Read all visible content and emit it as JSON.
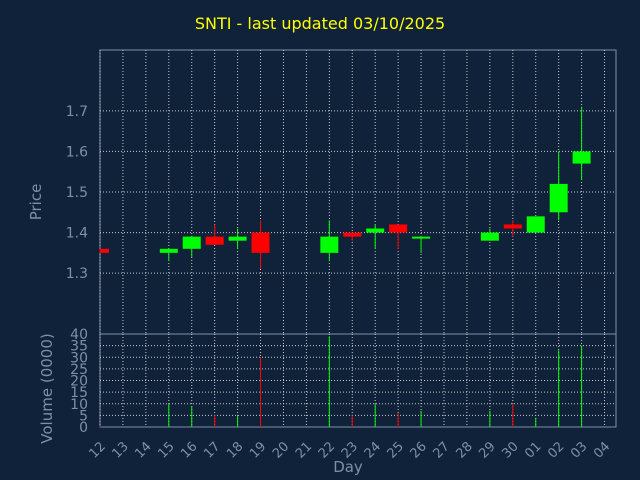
{
  "chart_data": {
    "type": "candlestick",
    "title": "SNTI - last updated 03/10/2025",
    "xlabel": "Day",
    "x_ticks": [
      "12",
      "13",
      "14",
      "15",
      "16",
      "17",
      "18",
      "19",
      "20",
      "21",
      "22",
      "23",
      "24",
      "25",
      "26",
      "27",
      "28",
      "29",
      "30",
      "01",
      "02",
      "03",
      "04"
    ],
    "price_panel": {
      "ylabel": "Price",
      "ylim": [
        1.15,
        1.85
      ],
      "yticks": [
        1.3,
        1.4,
        1.5,
        1.6,
        1.7
      ],
      "grid": true
    },
    "volume_panel": {
      "ylabel": "Volume (0000)",
      "ylim": [
        0,
        40
      ],
      "yticks": [
        0,
        5,
        10,
        15,
        20,
        25,
        30,
        35,
        40
      ],
      "grid": true
    },
    "colors": {
      "up": "#00ff00",
      "down": "#ff0000",
      "background": "#10213a",
      "title": "#ffff00",
      "axis": "#7f8fa6"
    },
    "candles": [
      {
        "day": "12",
        "open": 1.36,
        "high": 1.36,
        "low": 1.35,
        "close": 1.35,
        "volume": 0.5
      },
      {
        "day": "15",
        "open": 1.35,
        "high": 1.36,
        "low": 1.33,
        "close": 1.36,
        "volume": 10
      },
      {
        "day": "16",
        "open": 1.36,
        "high": 1.39,
        "low": 1.34,
        "close": 1.39,
        "volume": 9
      },
      {
        "day": "17",
        "open": 1.39,
        "high": 1.42,
        "low": 1.37,
        "close": 1.37,
        "volume": 5
      },
      {
        "day": "18",
        "open": 1.38,
        "high": 1.41,
        "low": 1.36,
        "close": 1.39,
        "volume": 5
      },
      {
        "day": "19",
        "open": 1.4,
        "high": 1.43,
        "low": 1.31,
        "close": 1.35,
        "volume": 30
      },
      {
        "day": "22",
        "open": 1.35,
        "high": 1.43,
        "low": 1.33,
        "close": 1.39,
        "volume": 39
      },
      {
        "day": "23",
        "open": 1.4,
        "high": 1.4,
        "low": 1.38,
        "close": 1.39,
        "volume": 5
      },
      {
        "day": "24",
        "open": 1.4,
        "high": 1.42,
        "low": 1.36,
        "close": 1.41,
        "volume": 10
      },
      {
        "day": "25",
        "open": 1.42,
        "high": 1.42,
        "low": 1.36,
        "close": 1.4,
        "volume": 6
      },
      {
        "day": "26",
        "open": 1.39,
        "high": 1.39,
        "low": 1.35,
        "close": 1.39,
        "volume": 7
      },
      {
        "day": "29",
        "open": 1.38,
        "high": 1.41,
        "low": 1.38,
        "close": 1.4,
        "volume": 7
      },
      {
        "day": "30",
        "open": 1.42,
        "high": 1.43,
        "low": 1.39,
        "close": 1.41,
        "volume": 10
      },
      {
        "day": "01",
        "open": 1.4,
        "high": 1.44,
        "low": 1.4,
        "close": 1.44,
        "volume": 4
      },
      {
        "day": "02",
        "open": 1.45,
        "high": 1.6,
        "low": 1.43,
        "close": 1.52,
        "volume": 33
      },
      {
        "day": "03",
        "open": 1.57,
        "high": 1.71,
        "low": 1.53,
        "close": 1.6,
        "volume": 35
      }
    ]
  }
}
